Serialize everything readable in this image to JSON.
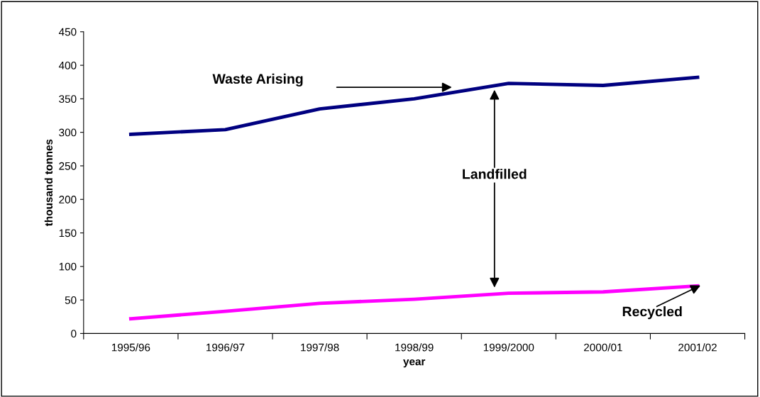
{
  "chart_data": {
    "type": "line",
    "xlabel": "year",
    "ylabel": "thousand tonnes",
    "categories": [
      "1995/96",
      "1996/97",
      "1997/98",
      "1998/99",
      "1999/2000",
      "2000/01",
      "2001/02"
    ],
    "series": [
      {
        "color": "#000080",
        "values": [
          297,
          304,
          335,
          350,
          373,
          370,
          382
        ]
      },
      {
        "color": "#ff00ff",
        "values": [
          22,
          33,
          45,
          51,
          60,
          62,
          71
        ]
      }
    ],
    "ylim": [
      0,
      450
    ],
    "yticks": [
      0,
      50,
      100,
      150,
      200,
      250,
      300,
      350,
      400,
      450
    ],
    "grid": false,
    "legend": false,
    "marker": "none",
    "line_style": "solid",
    "annotations": [
      "Waste Arising",
      "Landfilled",
      {
        "text": "Recycled",
        "x": "2001/02",
        "y": 71
      }
    ]
  }
}
